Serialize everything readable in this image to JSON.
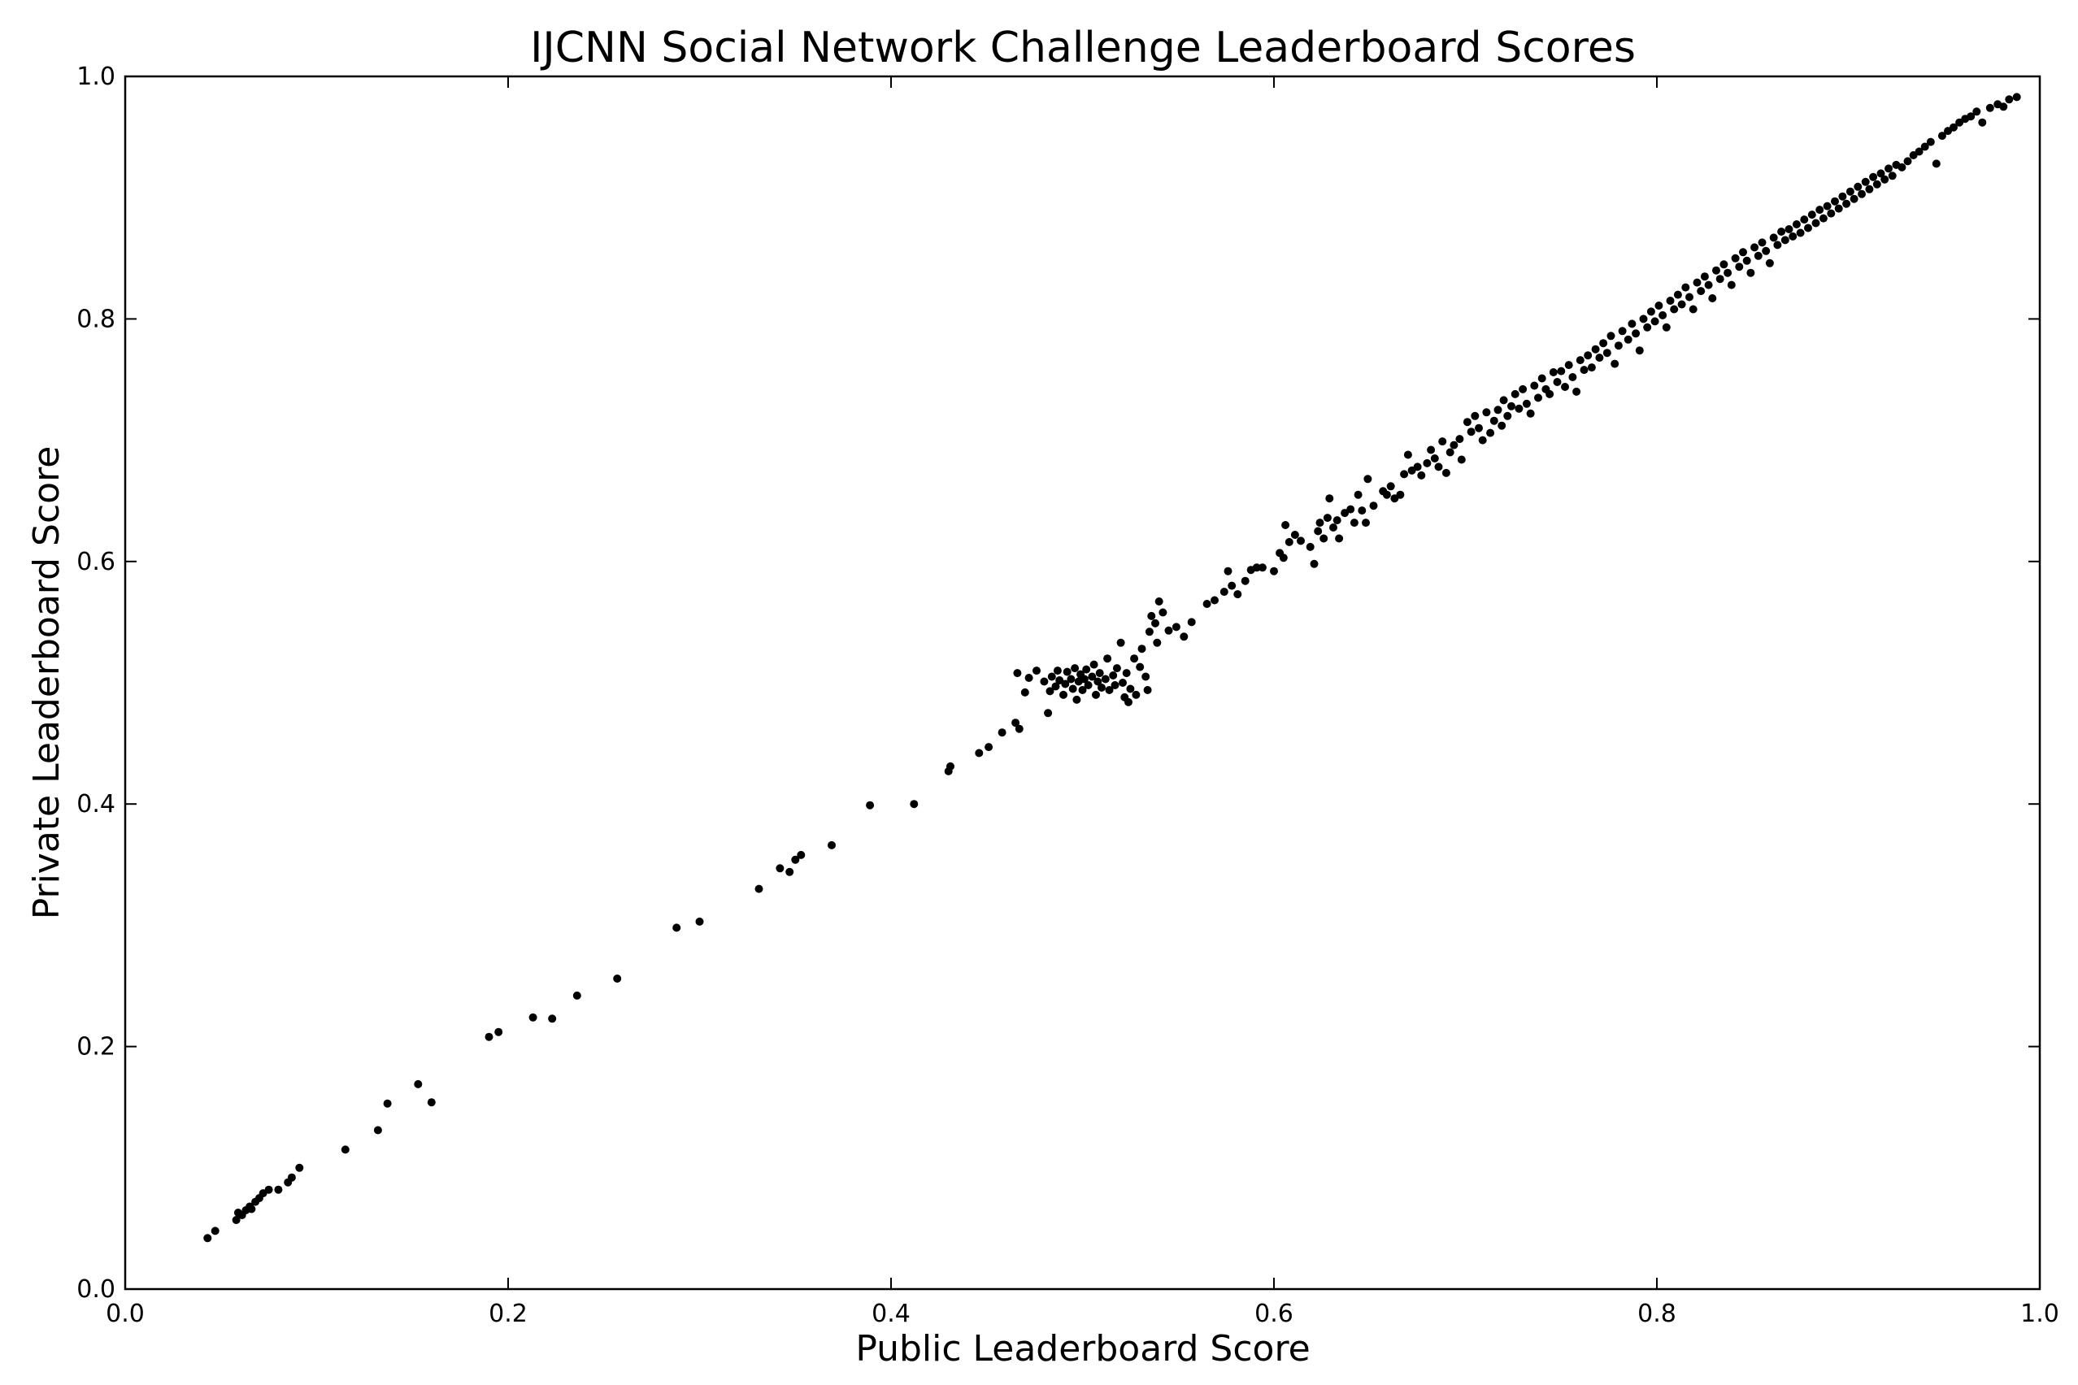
{
  "chart_data": {
    "type": "scatter",
    "title": "IJCNN Social Network Challenge  Leaderboard Scores",
    "xlabel": "Public Leaderboard Score",
    "ylabel": "Private Leaderboard Score",
    "xlim": [
      0.0,
      1.0
    ],
    "ylim": [
      0.0,
      1.0
    ],
    "xticks": [
      "0.0",
      "0.2",
      "0.4",
      "0.6",
      "0.8",
      "1.0"
    ],
    "yticks": [
      "0.0",
      "0.2",
      "0.4",
      "0.6",
      "0.8",
      "1.0"
    ],
    "grid": false,
    "legend": "none",
    "marker_color": "#000000",
    "points": [
      [
        0.043,
        0.042
      ],
      [
        0.047,
        0.048
      ],
      [
        0.058,
        0.057
      ],
      [
        0.059,
        0.063
      ],
      [
        0.061,
        0.061
      ],
      [
        0.063,
        0.065
      ],
      [
        0.065,
        0.068
      ],
      [
        0.066,
        0.066
      ],
      [
        0.068,
        0.072
      ],
      [
        0.07,
        0.075
      ],
      [
        0.072,
        0.079
      ],
      [
        0.075,
        0.082
      ],
      [
        0.08,
        0.082
      ],
      [
        0.085,
        0.088
      ],
      [
        0.087,
        0.092
      ],
      [
        0.091,
        0.1
      ],
      [
        0.115,
        0.115
      ],
      [
        0.132,
        0.131
      ],
      [
        0.137,
        0.153
      ],
      [
        0.153,
        0.169
      ],
      [
        0.16,
        0.154
      ],
      [
        0.19,
        0.208
      ],
      [
        0.195,
        0.212
      ],
      [
        0.213,
        0.224
      ],
      [
        0.223,
        0.223
      ],
      [
        0.236,
        0.242
      ],
      [
        0.257,
        0.256
      ],
      [
        0.288,
        0.298
      ],
      [
        0.3,
        0.303
      ],
      [
        0.331,
        0.33
      ],
      [
        0.342,
        0.347
      ],
      [
        0.347,
        0.344
      ],
      [
        0.35,
        0.354
      ],
      [
        0.353,
        0.358
      ],
      [
        0.369,
        0.366
      ],
      [
        0.389,
        0.399
      ],
      [
        0.412,
        0.4
      ],
      [
        0.43,
        0.427
      ],
      [
        0.431,
        0.431
      ],
      [
        0.446,
        0.442
      ],
      [
        0.451,
        0.447
      ],
      [
        0.458,
        0.459
      ],
      [
        0.465,
        0.467
      ],
      [
        0.467,
        0.462
      ],
      [
        0.466,
        0.508
      ],
      [
        0.47,
        0.492
      ],
      [
        0.472,
        0.504
      ],
      [
        0.476,
        0.51
      ],
      [
        0.48,
        0.501
      ],
      [
        0.482,
        0.475
      ],
      [
        0.483,
        0.493
      ],
      [
        0.484,
        0.505
      ],
      [
        0.486,
        0.497
      ],
      [
        0.487,
        0.51
      ],
      [
        0.488,
        0.502
      ],
      [
        0.49,
        0.49
      ],
      [
        0.491,
        0.499
      ],
      [
        0.492,
        0.509
      ],
      [
        0.494,
        0.503
      ],
      [
        0.495,
        0.495
      ],
      [
        0.496,
        0.512
      ],
      [
        0.497,
        0.486
      ],
      [
        0.498,
        0.501
      ],
      [
        0.499,
        0.507
      ],
      [
        0.5,
        0.494
      ],
      [
        0.501,
        0.503
      ],
      [
        0.502,
        0.511
      ],
      [
        0.503,
        0.498
      ],
      [
        0.505,
        0.505
      ],
      [
        0.506,
        0.515
      ],
      [
        0.507,
        0.49
      ],
      [
        0.508,
        0.501
      ],
      [
        0.509,
        0.508
      ],
      [
        0.51,
        0.496
      ],
      [
        0.512,
        0.503
      ],
      [
        0.513,
        0.52
      ],
      [
        0.514,
        0.494
      ],
      [
        0.516,
        0.506
      ],
      [
        0.517,
        0.498
      ],
      [
        0.518,
        0.512
      ],
      [
        0.52,
        0.533
      ],
      [
        0.521,
        0.5
      ],
      [
        0.522,
        0.488
      ],
      [
        0.523,
        0.508
      ],
      [
        0.524,
        0.484
      ],
      [
        0.525,
        0.495
      ],
      [
        0.527,
        0.52
      ],
      [
        0.528,
        0.49
      ],
      [
        0.53,
        0.513
      ],
      [
        0.531,
        0.528
      ],
      [
        0.533,
        0.505
      ],
      [
        0.534,
        0.494
      ],
      [
        0.535,
        0.542
      ],
      [
        0.536,
        0.555
      ],
      [
        0.538,
        0.549
      ],
      [
        0.539,
        0.533
      ],
      [
        0.54,
        0.567
      ],
      [
        0.542,
        0.558
      ],
      [
        0.545,
        0.543
      ],
      [
        0.549,
        0.546
      ],
      [
        0.553,
        0.538
      ],
      [
        0.557,
        0.55
      ],
      [
        0.565,
        0.565
      ],
      [
        0.569,
        0.568
      ],
      [
        0.574,
        0.575
      ],
      [
        0.576,
        0.592
      ],
      [
        0.578,
        0.58
      ],
      [
        0.581,
        0.573
      ],
      [
        0.585,
        0.584
      ],
      [
        0.588,
        0.593
      ],
      [
        0.591,
        0.595
      ],
      [
        0.594,
        0.595
      ],
      [
        0.6,
        0.592
      ],
      [
        0.603,
        0.607
      ],
      [
        0.605,
        0.603
      ],
      [
        0.606,
        0.63
      ],
      [
        0.608,
        0.616
      ],
      [
        0.611,
        0.622
      ],
      [
        0.614,
        0.617
      ],
      [
        0.619,
        0.612
      ],
      [
        0.621,
        0.598
      ],
      [
        0.623,
        0.625
      ],
      [
        0.624,
        0.632
      ],
      [
        0.626,
        0.619
      ],
      [
        0.628,
        0.636
      ],
      [
        0.629,
        0.652
      ],
      [
        0.631,
        0.628
      ],
      [
        0.633,
        0.634
      ],
      [
        0.634,
        0.619
      ],
      [
        0.637,
        0.64
      ],
      [
        0.64,
        0.643
      ],
      [
        0.642,
        0.632
      ],
      [
        0.644,
        0.655
      ],
      [
        0.646,
        0.642
      ],
      [
        0.648,
        0.632
      ],
      [
        0.649,
        0.668
      ],
      [
        0.652,
        0.646
      ],
      [
        0.657,
        0.658
      ],
      [
        0.659,
        0.655
      ],
      [
        0.661,
        0.662
      ],
      [
        0.663,
        0.652
      ],
      [
        0.666,
        0.655
      ],
      [
        0.668,
        0.672
      ],
      [
        0.67,
        0.688
      ],
      [
        0.672,
        0.675
      ],
      [
        0.675,
        0.678
      ],
      [
        0.677,
        0.671
      ],
      [
        0.68,
        0.681
      ],
      [
        0.682,
        0.692
      ],
      [
        0.684,
        0.685
      ],
      [
        0.686,
        0.678
      ],
      [
        0.688,
        0.699
      ],
      [
        0.69,
        0.673
      ],
      [
        0.692,
        0.69
      ],
      [
        0.694,
        0.696
      ],
      [
        0.697,
        0.701
      ],
      [
        0.698,
        0.684
      ],
      [
        0.701,
        0.715
      ],
      [
        0.703,
        0.707
      ],
      [
        0.705,
        0.72
      ],
      [
        0.707,
        0.71
      ],
      [
        0.709,
        0.7
      ],
      [
        0.711,
        0.723
      ],
      [
        0.713,
        0.706
      ],
      [
        0.715,
        0.716
      ],
      [
        0.717,
        0.725
      ],
      [
        0.719,
        0.712
      ],
      [
        0.72,
        0.733
      ],
      [
        0.722,
        0.72
      ],
      [
        0.724,
        0.728
      ],
      [
        0.726,
        0.738
      ],
      [
        0.728,
        0.726
      ],
      [
        0.73,
        0.742
      ],
      [
        0.732,
        0.73
      ],
      [
        0.734,
        0.722
      ],
      [
        0.736,
        0.745
      ],
      [
        0.738,
        0.735
      ],
      [
        0.74,
        0.751
      ],
      [
        0.742,
        0.742
      ],
      [
        0.744,
        0.738
      ],
      [
        0.746,
        0.756
      ],
      [
        0.748,
        0.748
      ],
      [
        0.75,
        0.757
      ],
      [
        0.752,
        0.744
      ],
      [
        0.754,
        0.762
      ],
      [
        0.756,
        0.752
      ],
      [
        0.758,
        0.74
      ],
      [
        0.76,
        0.766
      ],
      [
        0.762,
        0.758
      ],
      [
        0.764,
        0.77
      ],
      [
        0.766,
        0.76
      ],
      [
        0.768,
        0.775
      ],
      [
        0.77,
        0.768
      ],
      [
        0.772,
        0.78
      ],
      [
        0.774,
        0.772
      ],
      [
        0.776,
        0.786
      ],
      [
        0.778,
        0.763
      ],
      [
        0.78,
        0.778
      ],
      [
        0.782,
        0.79
      ],
      [
        0.785,
        0.783
      ],
      [
        0.787,
        0.796
      ],
      [
        0.789,
        0.788
      ],
      [
        0.791,
        0.774
      ],
      [
        0.793,
        0.8
      ],
      [
        0.795,
        0.793
      ],
      [
        0.797,
        0.806
      ],
      [
        0.799,
        0.798
      ],
      [
        0.801,
        0.811
      ],
      [
        0.803,
        0.803
      ],
      [
        0.805,
        0.793
      ],
      [
        0.807,
        0.815
      ],
      [
        0.809,
        0.808
      ],
      [
        0.811,
        0.82
      ],
      [
        0.813,
        0.812
      ],
      [
        0.815,
        0.826
      ],
      [
        0.817,
        0.818
      ],
      [
        0.819,
        0.808
      ],
      [
        0.821,
        0.83
      ],
      [
        0.823,
        0.823
      ],
      [
        0.825,
        0.835
      ],
      [
        0.827,
        0.828
      ],
      [
        0.829,
        0.817
      ],
      [
        0.831,
        0.84
      ],
      [
        0.833,
        0.833
      ],
      [
        0.835,
        0.845
      ],
      [
        0.837,
        0.838
      ],
      [
        0.839,
        0.828
      ],
      [
        0.841,
        0.85
      ],
      [
        0.843,
        0.843
      ],
      [
        0.845,
        0.855
      ],
      [
        0.847,
        0.848
      ],
      [
        0.849,
        0.838
      ],
      [
        0.851,
        0.859
      ],
      [
        0.853,
        0.852
      ],
      [
        0.855,
        0.863
      ],
      [
        0.857,
        0.856
      ],
      [
        0.859,
        0.846
      ],
      [
        0.861,
        0.867
      ],
      [
        0.863,
        0.861
      ],
      [
        0.865,
        0.872
      ],
      [
        0.867,
        0.865
      ],
      [
        0.869,
        0.874
      ],
      [
        0.871,
        0.868
      ],
      [
        0.873,
        0.878
      ],
      [
        0.875,
        0.871
      ],
      [
        0.877,
        0.882
      ],
      [
        0.879,
        0.875
      ],
      [
        0.881,
        0.886
      ],
      [
        0.883,
        0.879
      ],
      [
        0.885,
        0.89
      ],
      [
        0.887,
        0.883
      ],
      [
        0.889,
        0.893
      ],
      [
        0.891,
        0.887
      ],
      [
        0.893,
        0.897
      ],
      [
        0.895,
        0.891
      ],
      [
        0.897,
        0.901
      ],
      [
        0.899,
        0.895
      ],
      [
        0.901,
        0.905
      ],
      [
        0.903,
        0.899
      ],
      [
        0.905,
        0.909
      ],
      [
        0.907,
        0.903
      ],
      [
        0.909,
        0.913
      ],
      [
        0.911,
        0.907
      ],
      [
        0.913,
        0.917
      ],
      [
        0.915,
        0.911
      ],
      [
        0.917,
        0.92
      ],
      [
        0.919,
        0.915
      ],
      [
        0.921,
        0.924
      ],
      [
        0.923,
        0.918
      ],
      [
        0.925,
        0.927
      ],
      [
        0.928,
        0.925
      ],
      [
        0.931,
        0.93
      ],
      [
        0.934,
        0.935
      ],
      [
        0.937,
        0.938
      ],
      [
        0.94,
        0.942
      ],
      [
        0.943,
        0.946
      ],
      [
        0.946,
        0.928
      ],
      [
        0.949,
        0.951
      ],
      [
        0.952,
        0.955
      ],
      [
        0.955,
        0.958
      ],
      [
        0.958,
        0.962
      ],
      [
        0.961,
        0.965
      ],
      [
        0.964,
        0.967
      ],
      [
        0.967,
        0.971
      ],
      [
        0.97,
        0.962
      ],
      [
        0.974,
        0.974
      ],
      [
        0.978,
        0.977
      ],
      [
        0.981,
        0.975
      ],
      [
        0.984,
        0.981
      ],
      [
        0.988,
        0.983
      ]
    ]
  }
}
